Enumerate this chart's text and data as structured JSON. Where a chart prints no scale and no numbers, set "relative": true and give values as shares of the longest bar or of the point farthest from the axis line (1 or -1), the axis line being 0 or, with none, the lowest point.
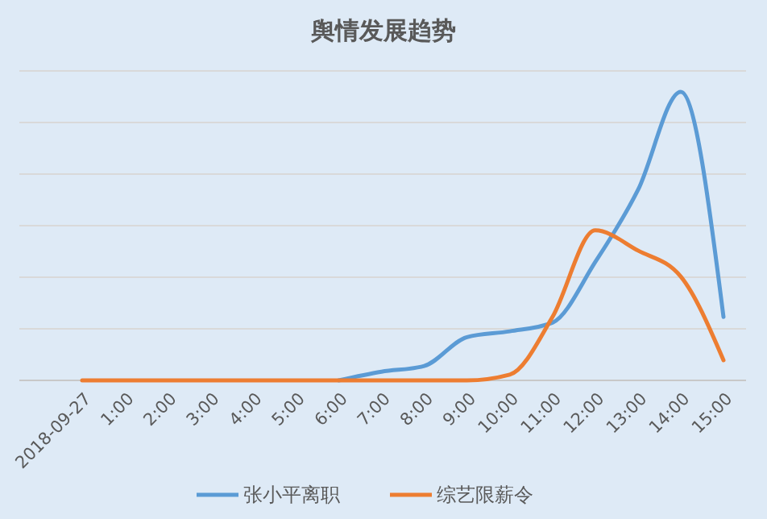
{
  "chart_data": {
    "type": "line",
    "title": "舆情发展趋势",
    "relative": true,
    "grid": "y",
    "legend": "bottom",
    "line_style": "solid",
    "categories": [
      "2018-09-27",
      "1:00",
      "2:00",
      "3:00",
      "4:00",
      "5:00",
      "6:00",
      "7:00",
      "8:00",
      "9:00",
      "10:00",
      "11:00",
      "12:00",
      "13:00",
      "14:00",
      "15:00"
    ],
    "series": [
      {
        "name": "张小平离职",
        "color": "#5b9bd5",
        "values": [
          null,
          null,
          null,
          null,
          null,
          null,
          0,
          0.03,
          0.05,
          0.15,
          0.17,
          0.2,
          0.41,
          0.66,
          1,
          0.22
        ]
      },
      {
        "name": "综艺限薪令",
        "color": "#ed7d31",
        "values": [
          0,
          0,
          0,
          0,
          0,
          0,
          0,
          0,
          0,
          0,
          0.02,
          0.22,
          0.52,
          0.45,
          0.36,
          0.07
        ]
      }
    ]
  }
}
